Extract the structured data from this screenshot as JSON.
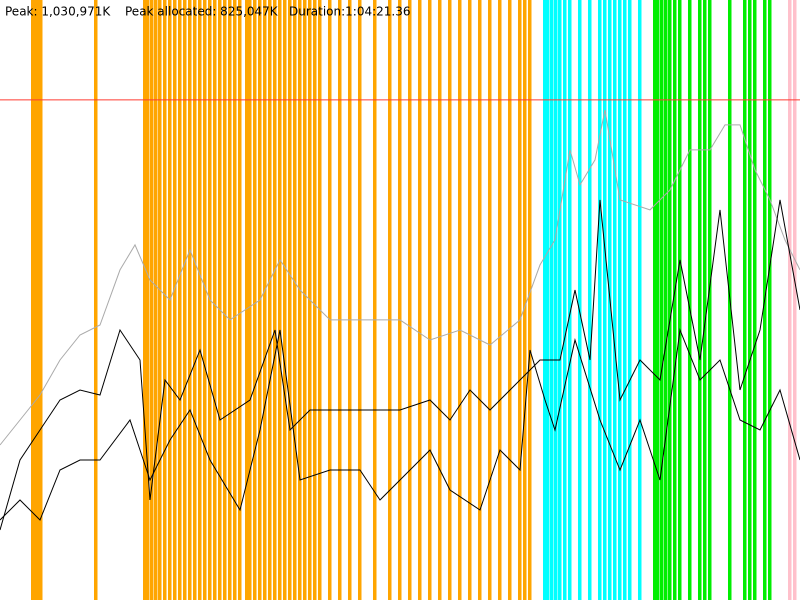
{
  "chart_data": {
    "type": "line",
    "header": [
      "Peak: 1,030,971K",
      "Peak allocated: 825,047K",
      "Duration:1:04:21.36"
    ],
    "xlim": [
      0,
      800
    ],
    "ylim": [
      0,
      1237000
    ],
    "peak_line": {
      "value": 1030971,
      "color": "#ff3b30"
    },
    "events": [
      {
        "color": "#ffa500",
        "x": [
          33,
          35,
          37,
          39,
          41,
          96,
          145,
          148,
          152,
          156,
          160,
          165,
          170,
          175,
          180,
          185,
          190,
          195,
          200,
          205,
          210,
          215,
          220,
          225,
          230,
          235,
          240,
          247,
          250,
          255,
          260,
          265,
          270,
          275,
          280,
          285,
          290,
          295,
          300,
          305,
          310,
          315,
          320,
          330,
          340,
          350,
          360,
          375,
          390,
          400,
          410,
          420,
          430,
          440,
          450,
          460,
          470,
          480,
          490,
          500,
          510,
          520,
          525,
          530
        ]
      },
      {
        "color": "#00ffff",
        "x": [
          545,
          548,
          552,
          556,
          560,
          565,
          570,
          580,
          590,
          600,
          605,
          610,
          615,
          620,
          625,
          630,
          640
        ]
      },
      {
        "color": "#00ee00",
        "x": [
          655,
          658,
          662,
          666,
          670,
          675,
          680,
          690,
          700,
          705,
          710,
          730,
          745,
          750,
          755,
          765,
          770
        ]
      },
      {
        "color": "#ffc0cb",
        "x": [
          790,
          795
        ]
      }
    ],
    "series": [
      {
        "color": "#aaaaaa",
        "x": [
          0,
          20,
          40,
          60,
          80,
          100,
          120,
          135,
          150,
          170,
          190,
          210,
          230,
          260,
          280,
          300,
          330,
          360,
          400,
          430,
          460,
          490,
          520,
          540,
          555,
          570,
          580,
          595,
          605,
          620,
          650,
          670,
          690,
          710,
          725,
          740,
          755,
          770,
          785,
          800
        ],
        "values": [
          319600,
          371200,
          422700,
          494900,
          546400,
          567000,
          680500,
          732000,
          659800,
          618600,
          721700,
          618600,
          577400,
          618600,
          701100,
          639200,
          577400,
          577400,
          577400,
          536100,
          556700,
          525800,
          577400,
          690800,
          742300,
          927900,
          855700,
          907300,
          1010400,
          824800,
          804200,
          845400,
          927900,
          927900,
          979500,
          979500,
          886700,
          824800,
          742300,
          680500
        ]
      },
      {
        "color": "#000000",
        "x": [
          0,
          20,
          40,
          60,
          80,
          100,
          120,
          140,
          150,
          165,
          180,
          200,
          220,
          250,
          275,
          290,
          310,
          340,
          370,
          400,
          430,
          450,
          470,
          490,
          520,
          540,
          560,
          575,
          590,
          600,
          620,
          640,
          660,
          680,
          700,
          720,
          740,
          760,
          780,
          800
        ],
        "values": [
          144300,
          288700,
          350500,
          412400,
          433000,
          422700,
          556700,
          494900,
          206200,
          453600,
          412400,
          515500,
          371200,
          412400,
          556700,
          350500,
          391800,
          391800,
          391800,
          391800,
          412400,
          371200,
          433000,
          391800,
          453600,
          494900,
          494900,
          639200,
          494900,
          824800,
          412400,
          494900,
          453600,
          701100,
          494900,
          804200,
          433000,
          556700,
          824800,
          598000
        ]
      },
      {
        "color": "#000000",
        "x": [
          0,
          20,
          40,
          60,
          80,
          100,
          130,
          150,
          170,
          190,
          210,
          240,
          260,
          280,
          300,
          330,
          360,
          380,
          410,
          430,
          450,
          480,
          500,
          520,
          530,
          545,
          555,
          575,
          600,
          620,
          640,
          660,
          680,
          700,
          720,
          740,
          760,
          780,
          800
        ],
        "values": [
          165000,
          206200,
          165000,
          268000,
          288700,
          288700,
          371200,
          247400,
          329900,
          391800,
          288700,
          185600,
          350500,
          556700,
          247400,
          268000,
          268000,
          206200,
          268000,
          309300,
          226800,
          185600,
          309300,
          268000,
          515500,
          412400,
          350500,
          536100,
          371200,
          268000,
          371200,
          247400,
          556700,
          453600,
          494900,
          371200,
          350500,
          433000,
          288700
        ]
      }
    ]
  }
}
